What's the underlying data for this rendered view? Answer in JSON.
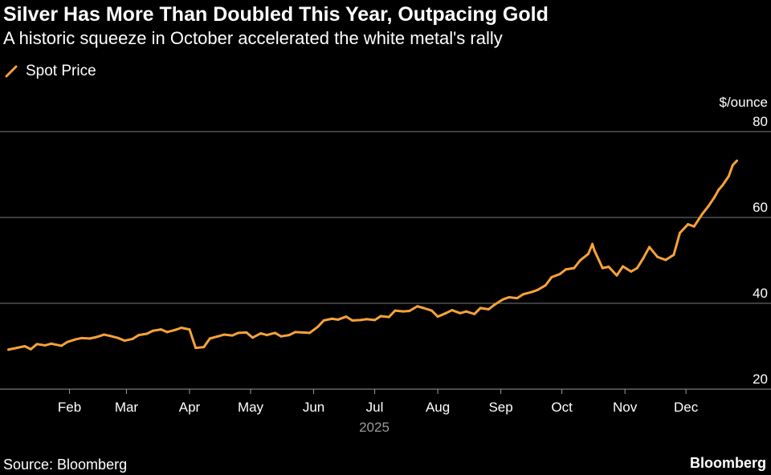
{
  "title": "Silver Has More Than Doubled This Year, Outpacing Gold",
  "subtitle": "A historic squeeze in October accelerated the white metal's rally",
  "source": "Source: Bloomberg",
  "brand": "Bloomberg",
  "colors": {
    "line": "#f7a23a",
    "grid": "#7a7a7a",
    "background": "#000000"
  },
  "chart_data": {
    "type": "line",
    "title": "Silver Has More Than Doubled This Year, Outpacing Gold",
    "subtitle": "A historic squeeze in October accelerated the white metal's rally",
    "ylabel": "$/ounce",
    "ylim": [
      20,
      80
    ],
    "yticks": [
      20,
      40,
      60,
      80
    ],
    "y_axis_side": "right",
    "xlim": [
      "2025-01-01",
      "2025-12-27"
    ],
    "xticks": [
      {
        "date": "2025-02-01",
        "label": "Feb"
      },
      {
        "date": "2025-03-01",
        "label": "Mar"
      },
      {
        "date": "2025-04-01",
        "label": "Apr"
      },
      {
        "date": "2025-05-01",
        "label": "May"
      },
      {
        "date": "2025-06-01",
        "label": "Jun"
      },
      {
        "date": "2025-07-01",
        "label": "Jul"
      },
      {
        "date": "2025-08-01",
        "label": "Aug"
      },
      {
        "date": "2025-09-01",
        "label": "Sep"
      },
      {
        "date": "2025-10-01",
        "label": "Oct"
      },
      {
        "date": "2025-11-01",
        "label": "Nov"
      },
      {
        "date": "2025-12-01",
        "label": "Dec"
      }
    ],
    "x_year_label": "2025",
    "grid": true,
    "legend_position": "top-left",
    "series": [
      {
        "name": "Spot Price",
        "color": "#f7a23a",
        "points": [
          [
            "2025-01-02",
            29.2
          ],
          [
            "2025-01-06",
            29.6
          ],
          [
            "2025-01-10",
            30.0
          ],
          [
            "2025-01-13",
            29.3
          ],
          [
            "2025-01-16",
            30.5
          ],
          [
            "2025-01-20",
            30.2
          ],
          [
            "2025-01-23",
            30.6
          ],
          [
            "2025-01-28",
            30.1
          ],
          [
            "2025-01-31",
            31.0
          ],
          [
            "2025-02-04",
            31.6
          ],
          [
            "2025-02-07",
            31.9
          ],
          [
            "2025-02-11",
            31.8
          ],
          [
            "2025-02-14",
            32.1
          ],
          [
            "2025-02-18",
            32.7
          ],
          [
            "2025-02-21",
            32.4
          ],
          [
            "2025-02-25",
            31.9
          ],
          [
            "2025-02-28",
            31.3
          ],
          [
            "2025-03-04",
            31.7
          ],
          [
            "2025-03-07",
            32.6
          ],
          [
            "2025-03-11",
            32.9
          ],
          [
            "2025-03-14",
            33.6
          ],
          [
            "2025-03-18",
            33.9
          ],
          [
            "2025-03-21",
            33.3
          ],
          [
            "2025-03-25",
            33.8
          ],
          [
            "2025-03-28",
            34.3
          ],
          [
            "2025-04-01",
            33.9
          ],
          [
            "2025-04-04",
            29.6
          ],
          [
            "2025-04-08",
            29.8
          ],
          [
            "2025-04-11",
            31.8
          ],
          [
            "2025-04-15",
            32.3
          ],
          [
            "2025-04-18",
            32.7
          ],
          [
            "2025-04-22",
            32.5
          ],
          [
            "2025-04-25",
            33.1
          ],
          [
            "2025-04-29",
            33.2
          ],
          [
            "2025-05-02",
            32.0
          ],
          [
            "2025-05-06",
            33.0
          ],
          [
            "2025-05-09",
            32.6
          ],
          [
            "2025-05-13",
            33.1
          ],
          [
            "2025-05-16",
            32.3
          ],
          [
            "2025-05-20",
            32.6
          ],
          [
            "2025-05-23",
            33.3
          ],
          [
            "2025-05-27",
            33.2
          ],
          [
            "2025-05-30",
            33.1
          ],
          [
            "2025-06-03",
            34.5
          ],
          [
            "2025-06-06",
            36.0
          ],
          [
            "2025-06-10",
            36.4
          ],
          [
            "2025-06-13",
            36.2
          ],
          [
            "2025-06-17",
            36.9
          ],
          [
            "2025-06-20",
            36.0
          ],
          [
            "2025-06-24",
            36.1
          ],
          [
            "2025-06-27",
            36.3
          ],
          [
            "2025-07-01",
            36.1
          ],
          [
            "2025-07-04",
            37.0
          ],
          [
            "2025-07-08",
            36.8
          ],
          [
            "2025-07-11",
            38.3
          ],
          [
            "2025-07-15",
            38.1
          ],
          [
            "2025-07-18",
            38.2
          ],
          [
            "2025-07-22",
            39.3
          ],
          [
            "2025-07-25",
            38.9
          ],
          [
            "2025-07-29",
            38.3
          ],
          [
            "2025-08-01",
            36.9
          ],
          [
            "2025-08-05",
            37.7
          ],
          [
            "2025-08-08",
            38.4
          ],
          [
            "2025-08-12",
            37.7
          ],
          [
            "2025-08-15",
            38.1
          ],
          [
            "2025-08-19",
            37.5
          ],
          [
            "2025-08-22",
            38.9
          ],
          [
            "2025-08-26",
            38.6
          ],
          [
            "2025-08-29",
            39.7
          ],
          [
            "2025-09-02",
            40.9
          ],
          [
            "2025-09-05",
            41.4
          ],
          [
            "2025-09-09",
            41.2
          ],
          [
            "2025-09-12",
            42.1
          ],
          [
            "2025-09-16",
            42.6
          ],
          [
            "2025-09-19",
            43.1
          ],
          [
            "2025-09-23",
            44.2
          ],
          [
            "2025-09-26",
            46.1
          ],
          [
            "2025-09-30",
            46.8
          ],
          [
            "2025-10-03",
            47.9
          ],
          [
            "2025-10-07",
            48.2
          ],
          [
            "2025-10-10",
            50.0
          ],
          [
            "2025-10-14",
            51.5
          ],
          [
            "2025-10-16",
            53.8
          ],
          [
            "2025-10-17",
            52.3
          ],
          [
            "2025-10-21",
            48.2
          ],
          [
            "2025-10-24",
            48.5
          ],
          [
            "2025-10-28",
            46.5
          ],
          [
            "2025-10-31",
            48.6
          ],
          [
            "2025-11-04",
            47.4
          ],
          [
            "2025-11-07",
            48.2
          ],
          [
            "2025-11-10",
            50.5
          ],
          [
            "2025-11-13",
            53.1
          ],
          [
            "2025-11-17",
            50.8
          ],
          [
            "2025-11-21",
            50.1
          ],
          [
            "2025-11-25",
            51.3
          ],
          [
            "2025-11-28",
            56.4
          ],
          [
            "2025-12-02",
            58.4
          ],
          [
            "2025-12-05",
            57.9
          ],
          [
            "2025-12-09",
            60.8
          ],
          [
            "2025-12-12",
            62.6
          ],
          [
            "2025-12-15",
            64.7
          ],
          [
            "2025-12-17",
            66.4
          ],
          [
            "2025-12-19",
            67.5
          ],
          [
            "2025-12-22",
            69.6
          ],
          [
            "2025-12-24",
            72.2
          ],
          [
            "2025-12-26",
            73.2
          ]
        ]
      }
    ]
  }
}
